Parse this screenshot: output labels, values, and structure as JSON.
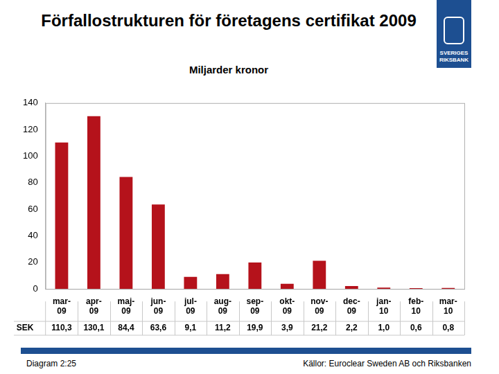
{
  "chart_data": {
    "type": "bar",
    "title": "Förfallostrukturen för företagens certifikat 2009",
    "subtitle": "Miljarder kronor",
    "categories": [
      "mar-09",
      "apr-09",
      "maj-09",
      "jun-09",
      "jul-09",
      "aug-09",
      "sep-09",
      "okt-09",
      "nov-09",
      "dec-09",
      "jan-10",
      "feb-10",
      "mar-10"
    ],
    "series": [
      {
        "name": "SEK",
        "color": "#b5121b",
        "values": [
          110.3,
          130.1,
          84.4,
          63.6,
          9.1,
          11.2,
          19.9,
          3.9,
          21.2,
          2.2,
          1.0,
          0.6,
          0.8
        ],
        "value_labels": [
          "110,3",
          "130,1",
          "84,4",
          "63,6",
          "9,1",
          "11,2",
          "19,9",
          "3,9",
          "21,2",
          "2,2",
          "1,0",
          "0,6",
          "0,8"
        ]
      }
    ],
    "ylim": [
      0,
      140
    ],
    "yticks": [
      0,
      20,
      40,
      60,
      80,
      100,
      120,
      140
    ],
    "grid": false,
    "note": "Diagram 2:25",
    "source": "Källor: Euroclear Sweden AB och Riksbanken"
  },
  "logo_text": [
    "SVERIGES",
    "RIKSBANK"
  ]
}
